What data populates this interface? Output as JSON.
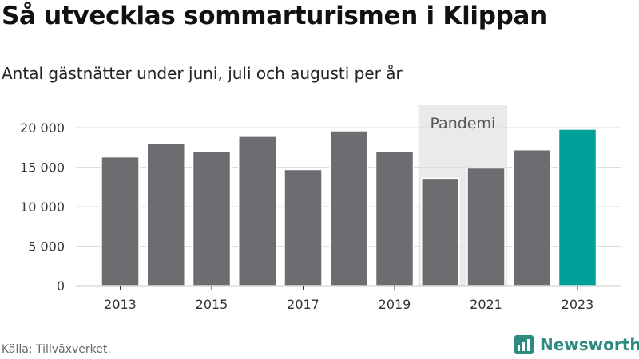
{
  "title": "Så utvecklas sommarturismen i Klippan",
  "subtitle": "Antal gästnätter under juni, juli och augusti per år",
  "source": "Källa: Tillväxverket.",
  "brand": {
    "name": "Newsworthy",
    "icon": "newsworthy-logo-icon",
    "color": "#2e8a80"
  },
  "colors": {
    "bar": "#6d6c71",
    "highlight": "#00a199",
    "annotation_fill": "#eaeaea",
    "grid": "#dddddd"
  },
  "chart_data": {
    "type": "bar",
    "categories": [
      "2013",
      "2014",
      "2015",
      "2016",
      "2017",
      "2018",
      "2019",
      "2020",
      "2021",
      "2022",
      "2023"
    ],
    "values": [
      16300,
      18000,
      17000,
      18900,
      14700,
      19600,
      17000,
      13600,
      14900,
      17200,
      19800
    ],
    "highlight_category": "2023",
    "x_tick_labels": [
      "2013",
      "2015",
      "2017",
      "2019",
      "2021",
      "2023"
    ],
    "y_ticks": [
      0,
      5000,
      10000,
      15000,
      20000
    ],
    "y_tick_labels": [
      "0",
      "5 000",
      "10 000",
      "15 000",
      "20 000"
    ],
    "ylim": [
      0,
      20000
    ],
    "grid": true,
    "annotation": {
      "label": "Pandemi",
      "from": "2020",
      "to": "2021"
    }
  }
}
